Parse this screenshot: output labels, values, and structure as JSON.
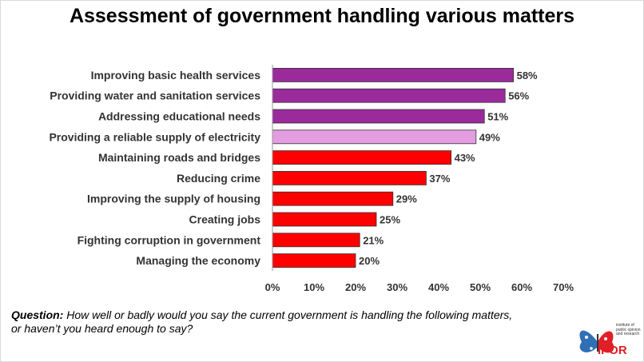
{
  "title": "Assessment of government handling various matters",
  "chart_data": {
    "type": "bar",
    "orientation": "horizontal",
    "categories": [
      "Improving basic health services",
      "Providing water and sanitation services",
      "Addressing educational needs",
      "Providing a reliable supply of electricity",
      "Maintaining roads and bridges",
      "Reducing crime",
      "Improving the supply of housing",
      "Creating jobs",
      "Fighting corruption in government",
      "Managing the economy"
    ],
    "values": [
      58,
      56,
      51,
      49,
      43,
      37,
      29,
      25,
      21,
      20
    ],
    "data_labels": [
      "58%",
      "56%",
      "51%",
      "49%",
      "43%",
      "37%",
      "29%",
      "25%",
      "21%",
      "20%"
    ],
    "bar_colors": [
      "#9b2a9b",
      "#9b2a9b",
      "#9b2a9b",
      "#e39de0",
      "#ff0000",
      "#ff0000",
      "#ff0000",
      "#ff0000",
      "#ff0000",
      "#ff0000"
    ],
    "x_ticks": [
      "0%",
      "10%",
      "20%",
      "30%",
      "40%",
      "50%",
      "60%",
      "70%"
    ],
    "xlim": [
      0,
      70
    ],
    "grid": false,
    "legend": "none"
  },
  "question": {
    "label": "Question:",
    "text": " How well or badly would you say the current government is handling the following matters, or haven’t you heard enough to say?"
  },
  "logo": {
    "name": "IPOR",
    "subtitle": "institute of public opinion and research",
    "primary_color": "#e01f26",
    "icon": "butterfly-icon"
  }
}
